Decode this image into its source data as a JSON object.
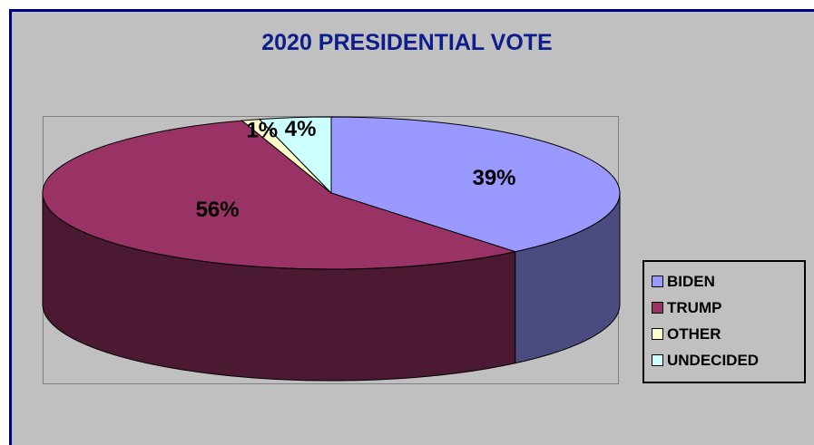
{
  "chart_data": {
    "type": "pie",
    "title": "2020 PRESIDENTIAL VOTE",
    "slices": [
      {
        "label": "BIDEN",
        "value": 39,
        "display": "39%",
        "color": "#9999ff",
        "side": "#4b4b7f"
      },
      {
        "label": "TRUMP",
        "value": 56,
        "display": "56%",
        "color": "#993366",
        "side": "#4c1933"
      },
      {
        "label": "OTHER",
        "value": 1,
        "display": "1%",
        "color": "#ffffcc",
        "side": "#7f7f66"
      },
      {
        "label": "UNDECIDED",
        "value": 4,
        "display": "4%",
        "color": "#ccffff",
        "side": "#667f7f"
      }
    ],
    "style": "3d",
    "legend": "right"
  }
}
